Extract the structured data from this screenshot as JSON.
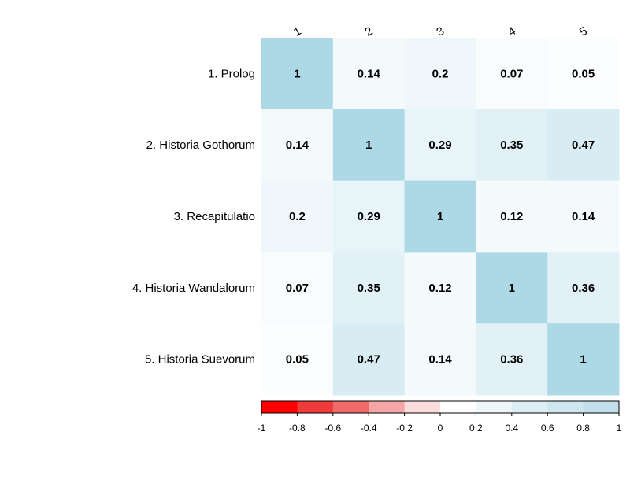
{
  "chart_data": {
    "type": "heatmap",
    "row_labels": [
      "1. Prolog",
      "2. Historia Gothorum",
      "3. Recapitulatio",
      "4. Historia Wandalorum",
      "5. Historia Suevorum"
    ],
    "col_labels": [
      "1",
      "2",
      "3",
      "4",
      "5"
    ],
    "values": [
      [
        1,
        0.14,
        0.2,
        0.07,
        0.05
      ],
      [
        0.14,
        1,
        0.29,
        0.35,
        0.47
      ],
      [
        0.2,
        0.29,
        1,
        0.12,
        0.14
      ],
      [
        0.07,
        0.35,
        0.12,
        1,
        0.36
      ],
      [
        0.05,
        0.47,
        0.14,
        0.36,
        1
      ]
    ],
    "colorbar": {
      "range": [
        -1,
        1
      ],
      "ticks": [
        "-1",
        "-0.8",
        "-0.6",
        "-0.4",
        "-0.2",
        "0",
        "0.2",
        "0.4",
        "0.6",
        "0.8",
        "1"
      ],
      "colors": [
        "#ff0000",
        "#f03a3a",
        "#f06a6a",
        "#f4a6a6",
        "#fbdcdc",
        "#ffffff",
        "#eef6fa",
        "#dfeef5",
        "#cfe6ef",
        "#c0dfea",
        "#add8e6"
      ]
    },
    "colors": {
      "negative_end": "#ff0000",
      "zero": "#ffffff",
      "positive_end": "#add8e6"
    }
  }
}
